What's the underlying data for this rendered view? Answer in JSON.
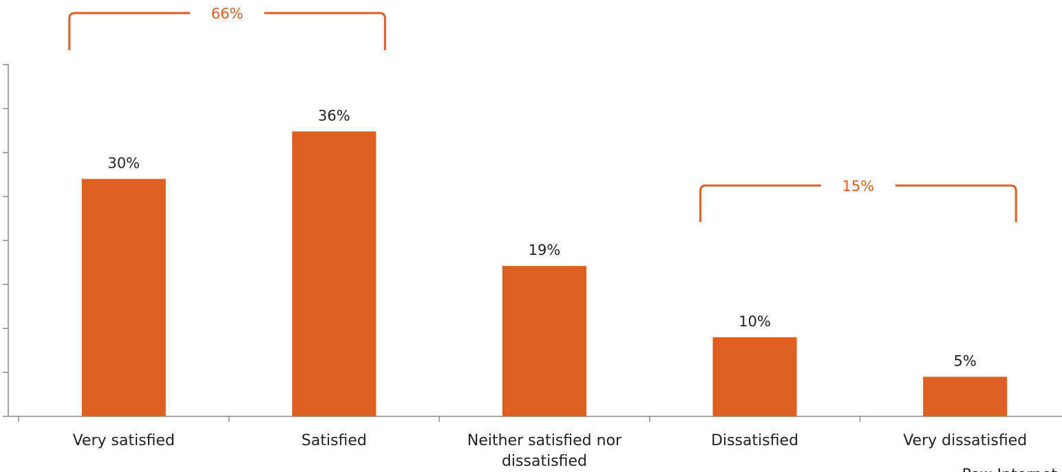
{
  "chart_data": {
    "type": "bar",
    "categories": [
      "Very satisfied",
      "Satisfied",
      "Neither satisfied nor dissatisfied",
      "Dissatisfied",
      "Very dissatisfied"
    ],
    "category_lines": [
      [
        "Very satisfied"
      ],
      [
        "Satisfied"
      ],
      [
        "Neither satisfied nor",
        "dissatisfied"
      ],
      [
        "Dissatisfied"
      ],
      [
        "Very dissatisfied"
      ]
    ],
    "values": [
      30,
      36,
      19,
      10,
      5
    ],
    "data_labels": [
      "30%",
      "36%",
      "19%",
      "10%",
      "5%"
    ],
    "ylim": [
      0,
      40
    ],
    "y_tick_count": 8,
    "grid": false,
    "color": "#DE5F21",
    "annotations": [
      {
        "label": "66%",
        "from_category": 0,
        "to_category": 1,
        "color": "#DE5F21"
      },
      {
        "label": "15%",
        "from_category": 3,
        "to_category": 4,
        "color": "#DE5F21"
      }
    ],
    "footnote": "Pew Internet"
  }
}
